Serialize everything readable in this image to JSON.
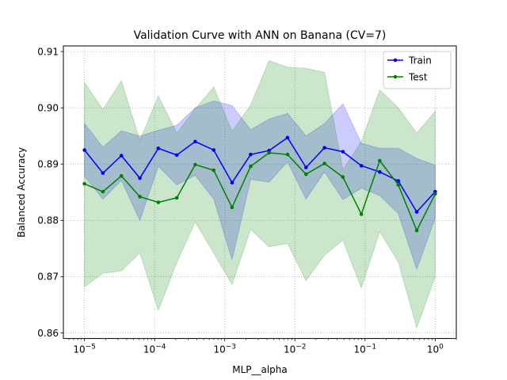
{
  "chart_data": {
    "type": "line",
    "title": "Validation Curve with ANN on Banana (CV=7)",
    "xlabel": "MLP__alpha",
    "ylabel": "Balanced Accuracy",
    "xscale": "log",
    "xlim": [
      5e-06,
      2
    ],
    "ylim": [
      0.859,
      0.911
    ],
    "grid": true,
    "legend_position": "top-right",
    "x_ticks": [
      {
        "value": 1e-05,
        "base": "10",
        "exp": "−5"
      },
      {
        "value": 0.0001,
        "base": "10",
        "exp": "−4"
      },
      {
        "value": 0.001,
        "base": "10",
        "exp": "−3"
      },
      {
        "value": 0.01,
        "base": "10",
        "exp": "−2"
      },
      {
        "value": 0.1,
        "base": "10",
        "exp": "−1"
      },
      {
        "value": 1,
        "base": "10",
        "exp": "0"
      }
    ],
    "y_ticks": [
      {
        "value": 0.86,
        "label": "0.86"
      },
      {
        "value": 0.87,
        "label": "0.87"
      },
      {
        "value": 0.88,
        "label": "0.88"
      },
      {
        "value": 0.89,
        "label": "0.89"
      },
      {
        "value": 0.9,
        "label": "0.90"
      },
      {
        "value": 0.91,
        "label": "0.91"
      }
    ],
    "x": [
      1e-05,
      1.83e-05,
      3.36e-05,
      6.16e-05,
      0.000113,
      0.000207,
      0.000379,
      0.000695,
      0.00127,
      0.00234,
      0.00428,
      0.00785,
      0.0144,
      0.0264,
      0.0483,
      0.0886,
      0.162,
      0.298,
      0.546,
      1.0
    ],
    "series": [
      {
        "name": "Train",
        "color": "#0000ff",
        "values": [
          0.8925,
          0.8884,
          0.8915,
          0.8875,
          0.8928,
          0.8916,
          0.894,
          0.8925,
          0.8867,
          0.8917,
          0.8924,
          0.8947,
          0.8894,
          0.8929,
          0.8922,
          0.8897,
          0.8886,
          0.887,
          0.8815,
          0.8851
        ],
        "upper": [
          0.8972,
          0.893,
          0.8959,
          0.895,
          0.896,
          0.8969,
          0.9,
          0.9012,
          0.9004,
          0.8961,
          0.898,
          0.899,
          0.895,
          0.8972,
          0.9007,
          0.8937,
          0.8928,
          0.8928,
          0.891,
          0.8898
        ],
        "lower": [
          0.8878,
          0.8838,
          0.8871,
          0.88,
          0.8896,
          0.8863,
          0.888,
          0.8838,
          0.873,
          0.8873,
          0.8868,
          0.8904,
          0.8838,
          0.8886,
          0.8837,
          0.8857,
          0.8844,
          0.8812,
          0.8713,
          0.8804
        ]
      },
      {
        "name": "Test",
        "color": "#008000",
        "values": [
          0.8865,
          0.8851,
          0.8879,
          0.8842,
          0.8832,
          0.884,
          0.8899,
          0.8889,
          0.8823,
          0.8896,
          0.892,
          0.8917,
          0.8882,
          0.8901,
          0.8877,
          0.8811,
          0.8906,
          0.8863,
          0.8782,
          0.8847
        ],
        "upper": [
          0.9045,
          0.8997,
          0.9048,
          0.8942,
          0.9021,
          0.8955,
          0.8998,
          0.9037,
          0.8958,
          0.9005,
          0.9084,
          0.9072,
          0.907,
          0.9063,
          0.889,
          0.894,
          0.9032,
          0.9,
          0.8955,
          0.8994
        ],
        "lower": [
          0.8682,
          0.8706,
          0.871,
          0.8742,
          0.864,
          0.8725,
          0.8797,
          0.8742,
          0.8686,
          0.8784,
          0.8753,
          0.8759,
          0.8693,
          0.8738,
          0.8765,
          0.868,
          0.878,
          0.8726,
          0.8609,
          0.87
        ]
      }
    ]
  }
}
